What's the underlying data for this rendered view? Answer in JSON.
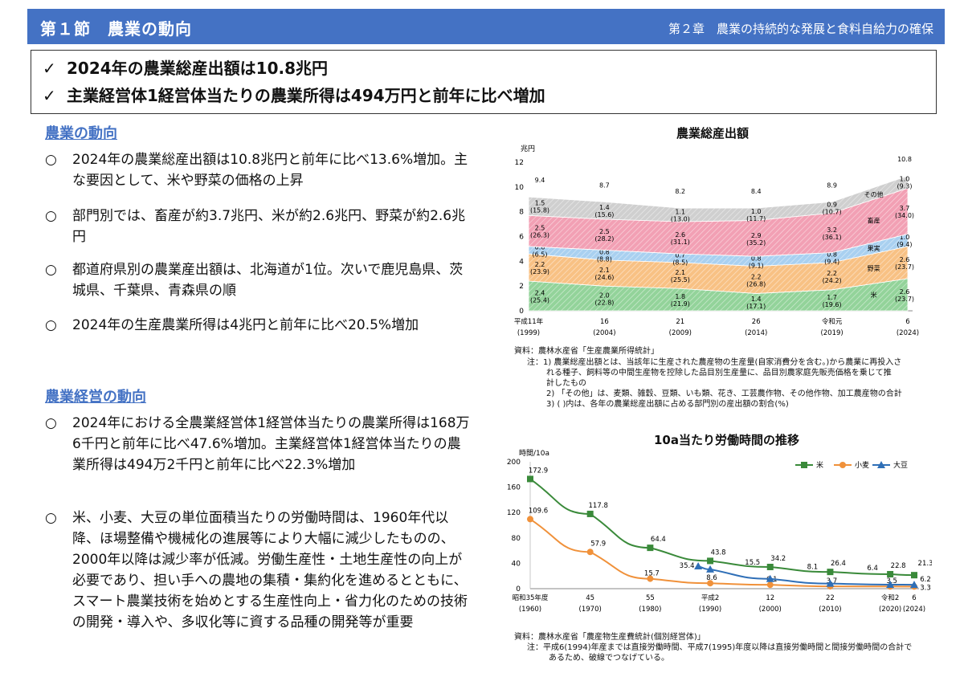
{
  "header": {
    "section_title": "第１節　農業の動向",
    "chapter_title": "第２章　農業の持続的な発展と食料自給力の確保"
  },
  "summary": {
    "check_icon": "✓",
    "lines": [
      "2024年の農業総産出額は10.8兆円",
      "主業経営体1経営体当たりの農業所得は494万円と前年に比べ増加"
    ]
  },
  "agri_trend": {
    "heading": "農業の動向",
    "bullet_icon": "○",
    "bullets": [
      "2024年の農業総産出額は10.8兆円と前年に比べ13.6%増加。主な要因として、米や野菜の価格の上昇",
      "部門別では、畜産が約3.7兆円、米が約2.6兆円、野菜が約2.6兆円",
      "都道府県別の農業産出額は、北海道が1位。次いで鹿児島県、茨城県、千葉県、青森県の順",
      "2024年の生産農業所得は4兆円と前年に比べ20.5%増加"
    ]
  },
  "mgmt_trend": {
    "heading": "農業経営の動向",
    "bullet_icon": "○",
    "bullets": [
      "2024年における全農業経営体1経営体当たりの農業所得は168万6千円と前年に比べ47.6%増加。主業経営体1経営体当たりの農業所得は494万2千円と前年に比べ22.3%増加",
      "米、小麦、大豆の単位面積当たりの労働時間は、1960年代以降、ほ場整備や機械化の進展等により大幅に減少したものの、2000年以降は減少率が低減。労働生産性・土地生産性の向上が必要であり、担い手への農地の集積・集約化を進めるとともに、スマート農業技術を始めとする生産性向上・省力化のための技術の開発・導入や、多収化等に資する品種の開発等が重要"
    ]
  },
  "chart_data": [
    {
      "type": "area",
      "title": "農業総産出額",
      "ylabel": "兆円",
      "ylim": [
        0,
        12
      ],
      "yticks": [
        0,
        2,
        4,
        6,
        8,
        10,
        12
      ],
      "x_ticks": [
        {
          "label": "平成11年",
          "sub": "(1999)"
        },
        {
          "label": "16",
          "sub": "(2004)"
        },
        {
          "label": "21",
          "sub": "(2009)"
        },
        {
          "label": "26",
          "sub": "(2014)"
        },
        {
          "label": "令和元",
          "sub": "(2019)"
        },
        {
          "label": "6",
          "sub": "(2024)"
        }
      ],
      "labeled_points": [
        "1999",
        "2004",
        "2009",
        "2014",
        "2019",
        "2024"
      ],
      "totals": [
        "9.4",
        "8.7",
        "8.2",
        "8.4",
        "8.9",
        "10.8"
      ],
      "series": [
        {
          "name": "米",
          "color": "#93d39a",
          "values": [
            2.4,
            2.0,
            1.8,
            1.4,
            1.7,
            2.6
          ],
          "shares": [
            "(25.4)",
            "(22.8)",
            "(21.9)",
            "(17.1)",
            "(19.6)",
            "(23.7)"
          ]
        },
        {
          "name": "野菜",
          "color": "#f8c184",
          "values": [
            2.2,
            2.1,
            2.1,
            2.2,
            2.2,
            2.6
          ],
          "shares": [
            "(23.9)",
            "(24.6)",
            "(25.5)",
            "(26.8)",
            "(24.2)",
            "(23.7)"
          ]
        },
        {
          "name": "果実",
          "color": "#a9d0f0",
          "values": [
            0.6,
            0.8,
            0.7,
            0.8,
            0.8,
            1.0
          ],
          "shares": [
            "(6.5)",
            "(8.8)",
            "(8.5)",
            "(9.1)",
            "(9.4)",
            "(9.4)"
          ]
        },
        {
          "name": "畜産",
          "color": "#f2a0b4",
          "values": [
            2.5,
            2.5,
            2.6,
            2.9,
            3.2,
            3.7
          ],
          "shares": [
            "(26.3)",
            "(28.2)",
            "(31.1)",
            "(35.2)",
            "(36.1)",
            "(34.0)"
          ]
        },
        {
          "name": "その他",
          "color": "#cfcfcf",
          "values": [
            1.5,
            1.4,
            1.1,
            1.0,
            0.9,
            1.0
          ],
          "shares": [
            "(15.8)",
            "(15.6)",
            "(13.0)",
            "(11.7)",
            "(10.7)",
            "(9.3)"
          ]
        }
      ],
      "source": "資料：農林水産省「生産農業所得統計」",
      "notes": [
        "注：1) 農業総産出額とは、当該年に生産された農産物の生産量(自家消費分を含む。)から農業に再投入さ",
        "れる種子、飼料等の中間生産物を控除した品目別生産量に、品目別農家庭先販売価格を乗じて推",
        "計したもの",
        "2) 「その他」は、麦類、雑穀、豆類、いも類、花き、工芸農作物、その他作物、加工農産物の合計",
        "3) ( )内は、各年の農業総産出額に占める部門別の産出額の割合(%)"
      ]
    },
    {
      "type": "line",
      "title": "10a当たり労働時間の推移",
      "ylabel": "時間/10a",
      "ylim": [
        0,
        200
      ],
      "yticks": [
        0,
        40,
        80,
        120,
        160,
        200
      ],
      "x_ticks": [
        {
          "label": "昭和35年度",
          "sub": "(1960)"
        },
        {
          "label": "45",
          "sub": "(1970)"
        },
        {
          "label": "55",
          "sub": "(1980)"
        },
        {
          "label": "平成2",
          "sub": "(1990)"
        },
        {
          "label": "12",
          "sub": "(2000)"
        },
        {
          "label": "22",
          "sub": "(2010)"
        },
        {
          "label": "令和2",
          "sub": "(2020)"
        },
        {
          "label": "6",
          "sub": "(2024)"
        }
      ],
      "series": [
        {
          "name": "米",
          "color": "#3a8a3a",
          "marker": "square",
          "points": [
            [
              1960,
              172.9
            ],
            [
              1970,
              117.8
            ],
            [
              1980,
              64.4
            ],
            [
              1990,
              43.8
            ],
            [
              2000,
              34.2
            ],
            [
              2010,
              26.4
            ],
            [
              2020,
              22.8
            ],
            [
              2024,
              21.3
            ]
          ],
          "labeled": [
            [
              1960,
              "172.9"
            ],
            [
              1970,
              "117.8"
            ],
            [
              1980,
              "64.4"
            ],
            [
              1990,
              "43.8"
            ],
            [
              2000,
              "34.2"
            ],
            [
              2010,
              "26.4"
            ],
            [
              2020,
              "22.8"
            ],
            [
              2024,
              "21.3"
            ]
          ]
        },
        {
          "name": "小麦",
          "color": "#f0913a",
          "marker": "circle",
          "points": [
            [
              1960,
              109.6
            ],
            [
              1970,
              57.9
            ],
            [
              1980,
              15.7
            ],
            [
              1990,
              8.6
            ],
            [
              2000,
              6.1
            ],
            [
              2010,
              3.7
            ],
            [
              2020,
              3.5
            ],
            [
              2024,
              3.3
            ]
          ],
          "labeled": [
            [
              1960,
              "109.6"
            ],
            [
              1970,
              "57.9"
            ],
            [
              1980,
              "15.7"
            ],
            [
              1990,
              "8.6"
            ],
            [
              2000,
              "6.1"
            ],
            [
              2010,
              "3.7"
            ],
            [
              2020,
              "3.5"
            ],
            [
              2024,
              "3.3"
            ]
          ]
        },
        {
          "name": "大豆",
          "color": "#2f6fb7",
          "marker": "triangle",
          "points": [
            [
              1988,
              35.4
            ],
            [
              1990,
              30.5
            ],
            [
              2000,
              15.5
            ],
            [
              2010,
              8.1
            ],
            [
              2020,
              6.4
            ],
            [
              2024,
              6.2
            ]
          ],
          "labeled": [
            [
              1988,
              "35.4"
            ],
            [
              2000,
              "15.5"
            ],
            [
              2010,
              "8.1"
            ],
            [
              2020,
              "6.4"
            ],
            [
              2024,
              "6.2"
            ]
          ]
        }
      ],
      "source": "資料：農林水産省「農産物生産費統計(個別経営体)」",
      "notes": [
        "注：平成6(1994)年産までは直接労働時間、平成7(1995)年度以降は直接労働時間と間接労働時間の合計で",
        "あるため、破線でつなげている。"
      ]
    }
  ]
}
